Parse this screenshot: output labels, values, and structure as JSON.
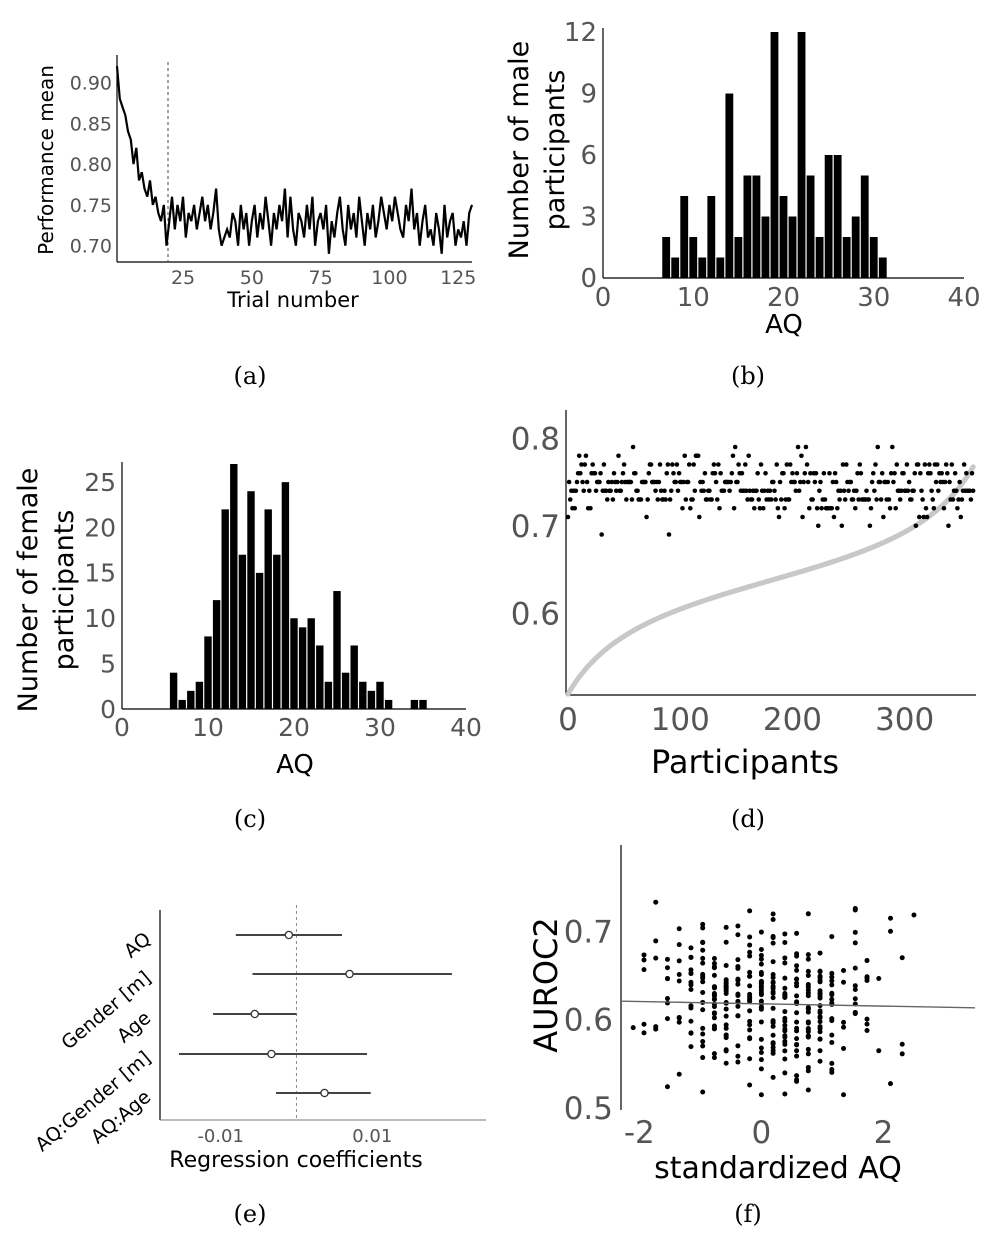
{
  "panels": {
    "a": {
      "caption": "(a)",
      "chart_data": {
        "type": "line",
        "xlabel": "Trial number",
        "ylabel": "Performance mean",
        "xlim": [
          1,
          130
        ],
        "ylim": [
          0.68,
          0.93
        ],
        "xticks": [
          25,
          50,
          75,
          100,
          125
        ],
        "yticks": [
          0.7,
          0.75,
          0.8,
          0.85,
          0.9
        ],
        "reference_line_x": 20,
        "x_start": 1,
        "y": [
          0.92,
          0.88,
          0.87,
          0.86,
          0.84,
          0.83,
          0.8,
          0.82,
          0.78,
          0.79,
          0.77,
          0.76,
          0.78,
          0.75,
          0.76,
          0.74,
          0.73,
          0.75,
          0.7,
          0.73,
          0.76,
          0.72,
          0.75,
          0.73,
          0.76,
          0.71,
          0.74,
          0.73,
          0.75,
          0.72,
          0.74,
          0.76,
          0.73,
          0.75,
          0.72,
          0.74,
          0.77,
          0.72,
          0.7,
          0.71,
          0.72,
          0.71,
          0.74,
          0.73,
          0.7,
          0.75,
          0.72,
          0.74,
          0.7,
          0.73,
          0.75,
          0.71,
          0.74,
          0.72,
          0.76,
          0.73,
          0.7,
          0.74,
          0.72,
          0.75,
          0.73,
          0.77,
          0.71,
          0.76,
          0.72,
          0.7,
          0.74,
          0.73,
          0.71,
          0.75,
          0.72,
          0.76,
          0.7,
          0.73,
          0.74,
          0.72,
          0.75,
          0.69,
          0.73,
          0.71,
          0.74,
          0.76,
          0.72,
          0.7,
          0.75,
          0.72,
          0.74,
          0.71,
          0.76,
          0.73,
          0.7,
          0.74,
          0.72,
          0.75,
          0.71,
          0.73,
          0.76,
          0.74,
          0.72,
          0.75,
          0.73,
          0.76,
          0.74,
          0.72,
          0.71,
          0.75,
          0.73,
          0.77,
          0.72,
          0.74,
          0.7,
          0.73,
          0.75,
          0.71,
          0.72,
          0.7,
          0.74,
          0.72,
          0.69,
          0.75,
          0.71,
          0.73,
          0.74,
          0.7,
          0.72,
          0.71,
          0.73,
          0.7,
          0.74,
          0.75
        ]
      }
    },
    "b": {
      "caption": "(b)",
      "chart_data": {
        "type": "bar",
        "xlabel": "AQ",
        "ylabel": "Number of male participants",
        "xlim": [
          0,
          40
        ],
        "ylim": [
          0,
          12
        ],
        "xticks": [
          0,
          10,
          20,
          30,
          40
        ],
        "yticks": [
          0,
          3,
          6,
          9,
          12
        ],
        "bins_x": [
          7,
          8,
          9,
          10,
          11,
          12,
          13,
          14,
          15,
          16,
          17,
          18,
          19,
          20,
          21,
          22,
          23,
          24,
          25,
          26,
          27,
          28,
          29,
          30,
          31
        ],
        "values": [
          2,
          1,
          4,
          2,
          1,
          4,
          1,
          9,
          2,
          5,
          5,
          3,
          12,
          4,
          3,
          12,
          5,
          2,
          6,
          6,
          2,
          3,
          5,
          2,
          1
        ]
      }
    },
    "c": {
      "caption": "(c)",
      "chart_data": {
        "type": "bar",
        "xlabel": "AQ",
        "ylabel": "Number of female participants",
        "xlim": [
          0,
          40
        ],
        "ylim": [
          0,
          27
        ],
        "xticks": [
          0,
          10,
          20,
          30,
          40
        ],
        "yticks": [
          0,
          5,
          10,
          15,
          20,
          25
        ],
        "bins_x": [
          6,
          7,
          8,
          9,
          10,
          11,
          12,
          13,
          14,
          15,
          16,
          17,
          18,
          19,
          20,
          21,
          22,
          23,
          24,
          25,
          26,
          27,
          28,
          29,
          30,
          31,
          32,
          33,
          34,
          35
        ],
        "values": [
          4,
          1,
          2,
          3,
          8,
          12,
          22,
          27,
          17,
          24,
          15,
          22,
          17,
          25,
          10,
          9,
          10,
          7,
          3,
          13,
          4,
          7,
          3,
          2,
          3,
          1,
          0,
          0,
          1,
          1
        ]
      }
    },
    "d": {
      "caption": "(d)",
      "chart_data": {
        "type": "scatter",
        "xlabel": "Participants",
        "ylabel": "",
        "xlim": [
          0,
          360
        ],
        "ylim": [
          0.51,
          0.83
        ],
        "xticks": [
          0,
          100,
          200,
          300
        ],
        "yticks": [
          0.6,
          0.7,
          0.8
        ],
        "series": [
          {
            "role": "sorted AUROC2",
            "color": "#c8c8c8",
            "n": 362,
            "start": 0.505,
            "end": 0.77
          },
          {
            "role": "performance",
            "color": "#000000",
            "n": 362,
            "levels": [
              0.69,
              0.7,
              0.71,
              0.72,
              0.73,
              0.74,
              0.75,
              0.76,
              0.77,
              0.78,
              0.79,
              0.8
            ]
          }
        ]
      }
    },
    "e": {
      "caption": "(e)",
      "chart_data": {
        "type": "forest",
        "xlabel": "Regression coefficients",
        "xlim": [
          -0.018,
          0.025
        ],
        "xticks": [
          -0.01,
          0.01
        ],
        "xtick_labels": [
          "-0.01",
          "0.01"
        ],
        "reference_line_x": 0,
        "terms": [
          "AQ",
          "Gender [m]",
          "Age",
          "AQ:Gender [m]",
          "AQ:Age"
        ],
        "estimates": [
          -0.001,
          0.007,
          -0.0055,
          -0.0033,
          0.0037
        ],
        "ci_low": [
          -0.008,
          -0.0058,
          -0.011,
          -0.0155,
          -0.0027
        ],
        "ci_high": [
          0.006,
          0.0205,
          0.0,
          0.0093,
          0.0098
        ]
      }
    },
    "f": {
      "caption": "(f)",
      "chart_data": {
        "type": "scatter",
        "xlabel": "standardized AQ",
        "ylabel": "AUROC2",
        "xlim": [
          -2.3,
          3.5
        ],
        "ylim": [
          0.5,
          0.79
        ],
        "xticks": [
          -2,
          0,
          2
        ],
        "yticks": [
          0.5,
          0.6,
          0.7
        ],
        "n_points": 360,
        "fit_line": {
          "intercept": 0.618,
          "slope": -0.0013
        }
      }
    }
  }
}
